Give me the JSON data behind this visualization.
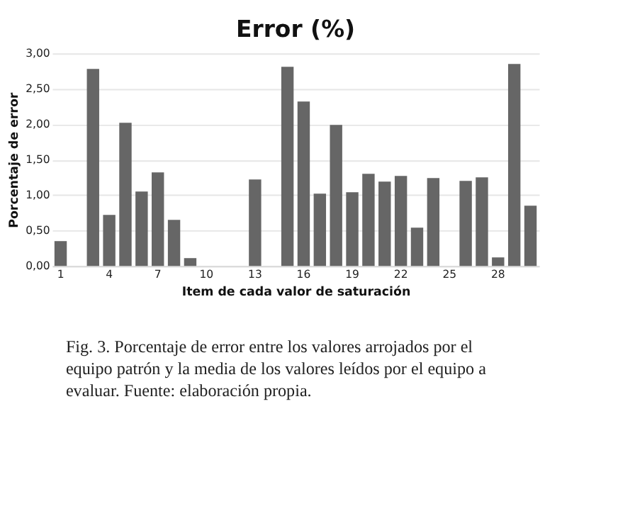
{
  "chart_data": {
    "type": "bar",
    "title": "Error (%)",
    "xlabel": "Item de cada valor de saturación",
    "ylabel": "Porcentaje de error",
    "categories": [
      "1",
      null,
      null,
      "4",
      null,
      null,
      "7",
      null,
      null,
      "10",
      null,
      null,
      "13",
      null,
      null,
      "16",
      null,
      null,
      "19",
      null,
      null,
      "22",
      null,
      null,
      "25",
      null,
      null,
      "28",
      null,
      null
    ],
    "values": [
      0.35,
      0,
      2.78,
      0.72,
      2.02,
      1.05,
      1.32,
      0.65,
      0.11,
      0,
      0,
      0,
      1.22,
      0,
      2.81,
      2.32,
      1.02,
      1.99,
      1.04,
      1.3,
      1.19,
      1.27,
      0.54,
      1.24,
      0,
      1.2,
      1.25,
      0.12,
      2.85,
      0.85
    ],
    "color": "#666666",
    "ylim": [
      0,
      3
    ],
    "yticks": [
      {
        "value": 0,
        "label": "0,00"
      },
      {
        "value": 0.5,
        "label": "0,50"
      },
      {
        "value": 1,
        "label": "1,00"
      },
      {
        "value": 1.5,
        "label": "1,50"
      },
      {
        "value": 2,
        "label": "2,00"
      },
      {
        "value": 2.5,
        "label": "2,50"
      },
      {
        "value": 3,
        "label": "3,00"
      }
    ],
    "grid": "y",
    "annotations": [
      "Fig. 3. Porcentaje de error entre los valores arrojados por el equipo patrón y la media de los valores leídos por el equipo a evaluar. Fuente: elaboración propia."
    ]
  }
}
